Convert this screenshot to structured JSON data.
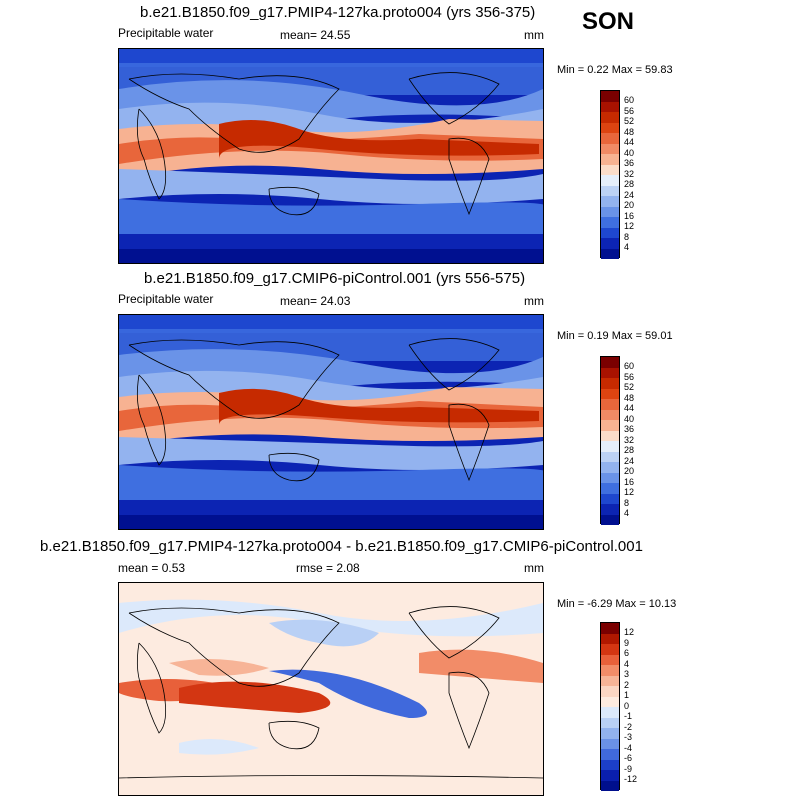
{
  "season": "SON",
  "panels": [
    {
      "title": "b.e21.B1850.f09_g17.PMIP4-127ka.proto004 (yrs 356-375)",
      "left_label": "Precipitable water",
      "center_label": "mean=  24.55",
      "right_label": "mm",
      "minmax": "Min =   0.22 Max =  59.83",
      "colorbar": {
        "labels": [
          "60",
          "56",
          "52",
          "48",
          "44",
          "40",
          "36",
          "32",
          "28",
          "24",
          "20",
          "16",
          "12",
          "8",
          "4"
        ],
        "colors": [
          "#7a0000",
          "#a81200",
          "#c62a00",
          "#dd4411",
          "#e8663b",
          "#f08a65",
          "#f7b292",
          "#fbdcc9",
          "#e6eefa",
          "#bdd2f5",
          "#93b3ef",
          "#6a93e8",
          "#3f6fe0",
          "#1e47cf",
          "#0c24b3",
          "#001090"
        ]
      }
    },
    {
      "title": "b.e21.B1850.f09_g17.CMIP6-piControl.001 (yrs 556-575)",
      "left_label": "Precipitable water",
      "center_label": "mean=  24.03",
      "right_label": "mm",
      "minmax": "Min =   0.19 Max =  59.01",
      "colorbar": {
        "labels": [
          "60",
          "56",
          "52",
          "48",
          "44",
          "40",
          "36",
          "32",
          "28",
          "24",
          "20",
          "16",
          "12",
          "8",
          "4"
        ],
        "colors": [
          "#7a0000",
          "#a81200",
          "#c62a00",
          "#dd4411",
          "#e8663b",
          "#f08a65",
          "#f7b292",
          "#fbdcc9",
          "#e6eefa",
          "#bdd2f5",
          "#93b3ef",
          "#6a93e8",
          "#3f6fe0",
          "#1e47cf",
          "#0c24b3",
          "#001090"
        ]
      }
    },
    {
      "title": "b.e21.B1850.f09_g17.PMIP4-127ka.proto004 - b.e21.B1850.f09_g17.CMIP6-piControl.001",
      "left_label": "mean =    0.53",
      "center_label": "rmse =    2.08",
      "right_label": "mm",
      "minmax": "Min =  -6.29 Max =  10.13",
      "colorbar": {
        "labels": [
          "12",
          "9",
          "6",
          "4",
          "3",
          "2",
          "1",
          "0",
          "-1",
          "-2",
          "-3",
          "-4",
          "-6",
          "-9",
          "-12"
        ],
        "colors": [
          "#7a0000",
          "#b01800",
          "#d33612",
          "#e8603a",
          "#f28c68",
          "#f7b497",
          "#fbd6c3",
          "#fdebe0",
          "#dce9fb",
          "#b9d0f5",
          "#92b2ee",
          "#6a91e6",
          "#4069dc",
          "#1c3fc8",
          "#0a1fae",
          "#000f8c"
        ]
      }
    }
  ]
}
